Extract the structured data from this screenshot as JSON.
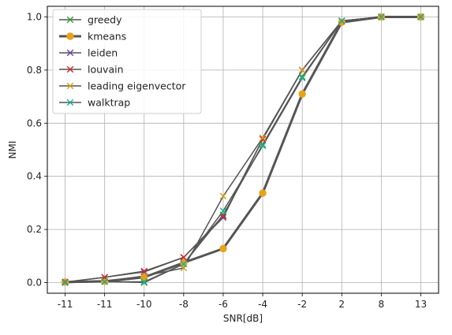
{
  "chart_data": {
    "type": "line",
    "categories": [
      "-11",
      "-11",
      "-10",
      "-8",
      "-6",
      "-4",
      "-2",
      "2",
      "8",
      "13"
    ],
    "xlabel": "SNR[dB]",
    "ylabel": "NMI",
    "ylim": [
      -0.04,
      1.04
    ],
    "yticks": [
      "0.0",
      "0.2",
      "0.4",
      "0.6",
      "0.8",
      "1.0"
    ],
    "grid": true,
    "legend_position": "top-left",
    "line_color": "#555555",
    "series": [
      {
        "name": "greedy",
        "marker": "x",
        "color": "#2ca02c",
        "linewidth": 1.5,
        "values": [
          0.0,
          0.005,
          0.0,
          0.07,
          0.255,
          0.52,
          0.775,
          0.985,
          1.0,
          1.0
        ]
      },
      {
        "name": "kmeans",
        "marker": "o",
        "color": "#e8a317",
        "linewidth": 3,
        "values": [
          0.002,
          0.005,
          0.02,
          0.075,
          0.128,
          0.337,
          0.71,
          0.98,
          1.0,
          1.0
        ]
      },
      {
        "name": "leiden",
        "marker": "x",
        "color": "#6a3fb0",
        "linewidth": 1.5,
        "values": [
          0.002,
          0.02,
          0.04,
          0.095,
          0.245,
          0.54,
          0.8,
          0.985,
          1.0,
          1.0
        ]
      },
      {
        "name": "louvain",
        "marker": "x",
        "color": "#d62728",
        "linewidth": 1.5,
        "values": [
          0.002,
          0.02,
          0.043,
          0.095,
          0.25,
          0.54,
          0.8,
          0.985,
          1.0,
          1.0
        ]
      },
      {
        "name": "leading eigenvector",
        "marker": "x",
        "color": "#d4a017",
        "linewidth": 1.5,
        "values": [
          0.0,
          0.005,
          0.025,
          0.055,
          0.325,
          0.545,
          0.8,
          0.985,
          1.0,
          1.0
        ]
      },
      {
        "name": "walktrap",
        "marker": "x",
        "color": "#1aaf9a",
        "linewidth": 1.5,
        "values": [
          0.0,
          0.003,
          0.003,
          0.07,
          0.27,
          0.515,
          0.77,
          0.985,
          1.0,
          1.0
        ]
      }
    ]
  }
}
